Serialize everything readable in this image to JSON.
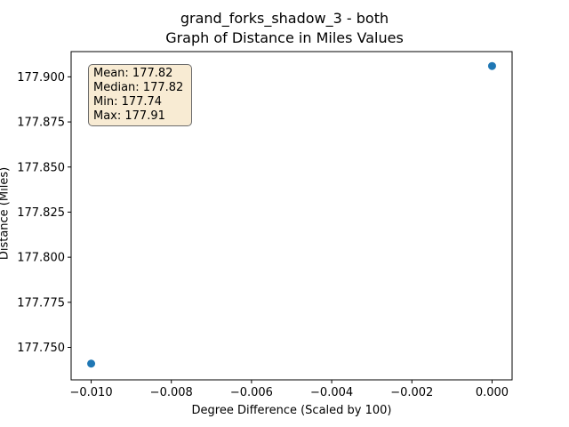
{
  "chart_data": {
    "type": "scatter",
    "title": [
      "grand_forks_shadow_3 - both",
      "Graph of Distance in Miles Values"
    ],
    "xlabel": "Degree Difference (Scaled by 100)",
    "ylabel": "Distance (Miles)",
    "xlim": [
      -0.0105,
      0.0005
    ],
    "ylim": [
      177.732,
      177.914
    ],
    "xticks": [
      -0.01,
      -0.008,
      -0.006,
      -0.004,
      -0.002,
      0.0
    ],
    "xtick_labels": [
      "−0.010",
      "−0.008",
      "−0.006",
      "−0.004",
      "−0.002",
      "0.000"
    ],
    "yticks": [
      177.75,
      177.775,
      177.8,
      177.825,
      177.85,
      177.875,
      177.9
    ],
    "ytick_labels": [
      "177.750",
      "177.775",
      "177.800",
      "177.825",
      "177.850",
      "177.875",
      "177.900"
    ],
    "points": [
      {
        "x": -0.01,
        "y": 177.741
      },
      {
        "x": 0.0,
        "y": 177.906
      }
    ],
    "point_color": "#1f77b4",
    "grid": false,
    "stats": {
      "mean": "Mean: 177.82",
      "median": "Median: 177.82",
      "min": "Min: 177.74",
      "max": "Max: 177.91"
    }
  }
}
